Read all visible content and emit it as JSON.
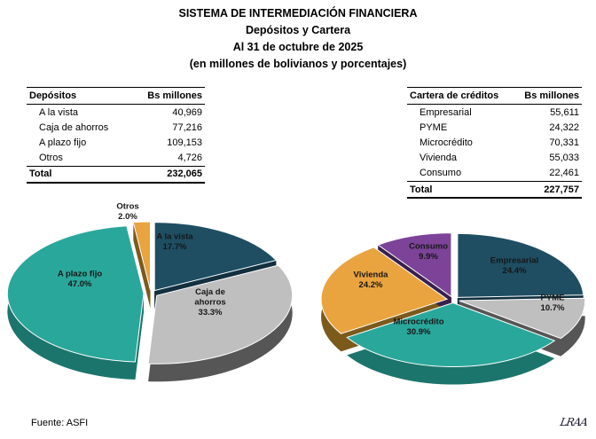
{
  "title": {
    "line1": "SISTEMA DE INTERMEDIACIÓN FINANCIERA",
    "line2": "Depósitos y Cartera",
    "line3": "Al 31 de octubre de 2025",
    "line4": "(en millones de bolivianos y porcentajes)"
  },
  "tables": [
    {
      "header": {
        "name": "Depósitos",
        "value": "Bs millones"
      },
      "rows": [
        {
          "label": "A la vista",
          "value": "40,969"
        },
        {
          "label": "Caja de ahorros",
          "value": "77,216"
        },
        {
          "label": "A plazo fijo",
          "value": "109,153"
        },
        {
          "label": "Otros",
          "value": "4,726"
        }
      ],
      "total": {
        "label": "Total",
        "value": "232,065"
      }
    },
    {
      "header": {
        "name": "Cartera de créditos",
        "value": "Bs millones"
      },
      "rows": [
        {
          "label": "Empresarial",
          "value": "55,611"
        },
        {
          "label": "PYME",
          "value": "24,322"
        },
        {
          "label": "Microcrédito",
          "value": "70,331"
        },
        {
          "label": "Vivienda",
          "value": "55,033"
        },
        {
          "label": "Consumo",
          "value": "22,461"
        }
      ],
      "total": {
        "label": "Total",
        "value": "227,757"
      }
    }
  ],
  "footer": {
    "source": "Fuente: ASFI",
    "signature": "LRAA"
  },
  "chart_data": [
    {
      "type": "pie",
      "title": "Depósitos",
      "unit": "Bs millones (porcentajes)",
      "legend_position": "none",
      "style": "3d-exploded",
      "slices": [
        {
          "label": "A la vista",
          "value": 40969,
          "pct": 17.7,
          "color": "#1F4E63",
          "side_color": "#12303F",
          "label_offset": [
            27,
            -59
          ]
        },
        {
          "label": "Caja de\nahorros",
          "value": 77216,
          "pct": 33.3,
          "color": "#BFBFBF",
          "side_color": "#565656",
          "label_offset": [
            67,
            9
          ]
        },
        {
          "label": "A plazo fijo",
          "value": 109153,
          "pct": 47.0,
          "color": "#2AA79B",
          "side_color": "#1C756C",
          "label_offset": [
            -80,
            -17
          ]
        },
        {
          "label": "Otros",
          "value": 4726,
          "pct": 2.0,
          "color": "#E9A43F",
          "side_color": "#7C5A1C",
          "label_offset": [
            -26,
            -93
          ],
          "outside": true
        }
      ],
      "total": 232065
    },
    {
      "type": "pie",
      "title": "Cartera de créditos",
      "unit": "Bs millones (porcentajes)",
      "legend_position": "none",
      "style": "3d-exploded",
      "slices": [
        {
          "label": "Empresarial",
          "value": 55611,
          "pct": 24.4,
          "color": "#1F4E63",
          "side_color": "#12303F",
          "label_offset": [
            69,
            -39
          ]
        },
        {
          "label": "PYME",
          "value": 24322,
          "pct": 10.7,
          "color": "#BFBFBF",
          "side_color": "#565656",
          "label_offset": [
            112,
            3
          ]
        },
        {
          "label": "Microcrédito",
          "value": 70331,
          "pct": 30.9,
          "color": "#2AA79B",
          "side_color": "#1C756C",
          "label_offset": [
            -39,
            30
          ]
        },
        {
          "label": "Vivienda",
          "value": 55033,
          "pct": 24.2,
          "color": "#E9A43F",
          "side_color": "#7C5A1C",
          "label_offset": [
            -93,
            -23
          ]
        },
        {
          "label": "Consumo",
          "value": 22461,
          "pct": 9.9,
          "color": "#7C4399",
          "side_color": "#3A1F4D",
          "label_offset": [
            -28,
            -55
          ]
        }
      ],
      "total": 227757
    }
  ]
}
